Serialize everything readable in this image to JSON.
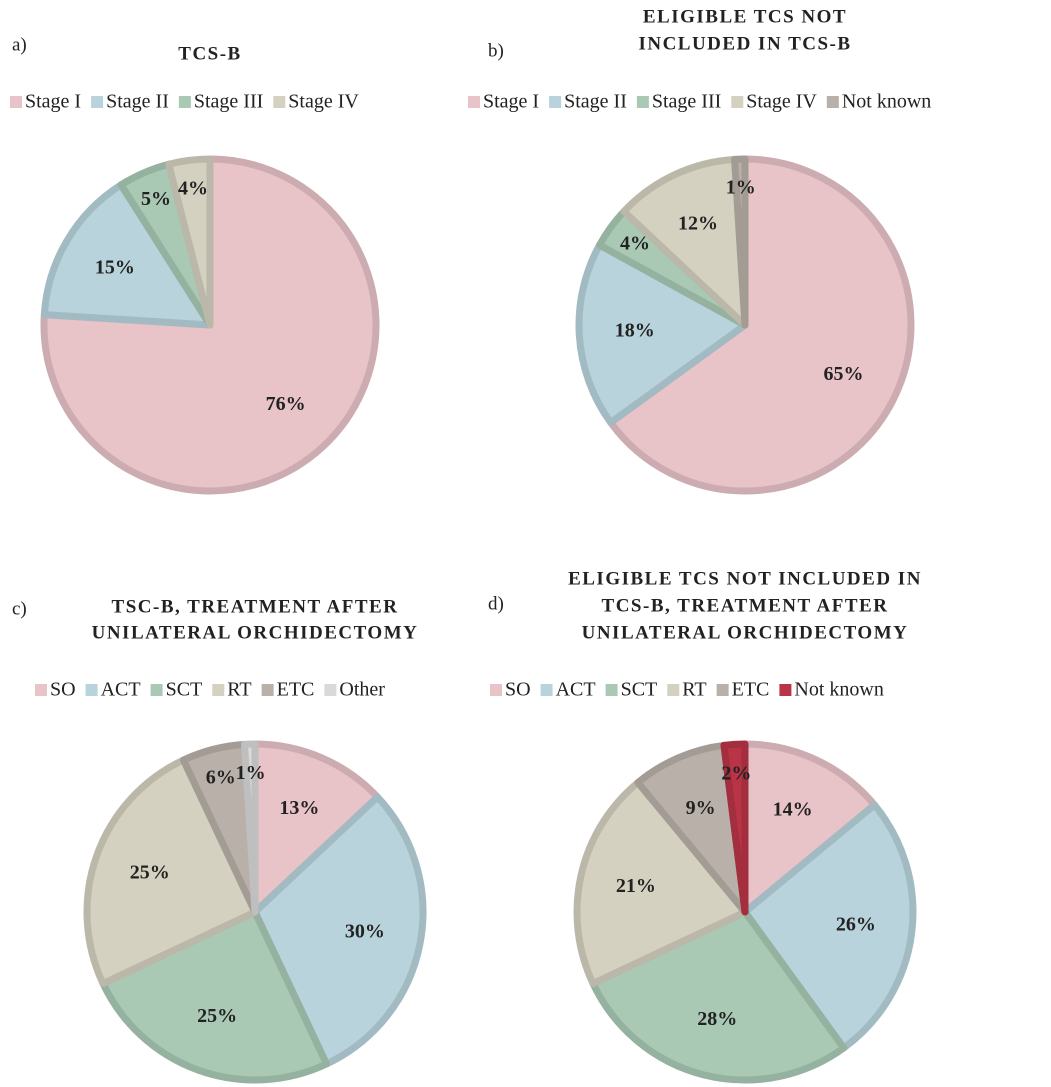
{
  "chart_data": [
    {
      "type": "pie",
      "panel_label": "a)",
      "title": [
        "TCS-B"
      ],
      "categories": [
        "Stage I",
        "Stage II",
        "Stage III",
        "Stage IV"
      ],
      "values": [
        76,
        15,
        5,
        4
      ],
      "value_labels": [
        "76%",
        "15%",
        "5%",
        "4%"
      ],
      "colors": [
        "#e8c3c8",
        "#b8d3dc",
        "#a9c9b5",
        "#d5d1c1"
      ]
    },
    {
      "type": "pie",
      "panel_label": "b)",
      "title": [
        "ELIGIBLE TCS NOT",
        "INCLUDED IN TCS-B"
      ],
      "categories": [
        "Stage I",
        "Stage II",
        "Stage III",
        "Stage IV",
        "Not known"
      ],
      "values": [
        65,
        18,
        4,
        12,
        1
      ],
      "value_labels": [
        "65%",
        "18%",
        "4%",
        "12%",
        "1%"
      ],
      "colors": [
        "#e8c3c8",
        "#b8d3dc",
        "#a9c9b5",
        "#d5d1c1",
        "#b9b1a9"
      ]
    },
    {
      "type": "pie",
      "panel_label": "c)",
      "title": [
        "TSC-B, TREATMENT AFTER",
        "UNILATERAL ORCHIDECTOMY"
      ],
      "categories": [
        "SO",
        "ACT",
        "SCT",
        "RT",
        "ETC",
        "Other"
      ],
      "values": [
        13,
        30,
        25,
        25,
        6,
        1
      ],
      "value_labels": [
        "13%",
        "30%",
        "25%",
        "25%",
        "6%",
        "1%"
      ],
      "colors": [
        "#e8c3c8",
        "#b8d3dc",
        "#a9c9b5",
        "#d5d1c1",
        "#b9b1a9",
        "#d9d9d9"
      ]
    },
    {
      "type": "pie",
      "panel_label": "d)",
      "title": [
        "ELIGIBLE TCS NOT INCLUDED IN",
        "TCS-B, TREATMENT AFTER",
        "UNILATERAL ORCHIDECTOMY"
      ],
      "categories": [
        "SO",
        "ACT",
        "SCT",
        "RT",
        "ETC",
        "Not known"
      ],
      "values": [
        14,
        26,
        28,
        21,
        9,
        2
      ],
      "value_labels": [
        "14%",
        "26%",
        "28%",
        "21%",
        "9%",
        "2%"
      ],
      "colors": [
        "#e8c3c8",
        "#b8d3dc",
        "#a9c9b5",
        "#d5d1c1",
        "#b9b1a9",
        "#b83446"
      ]
    }
  ]
}
